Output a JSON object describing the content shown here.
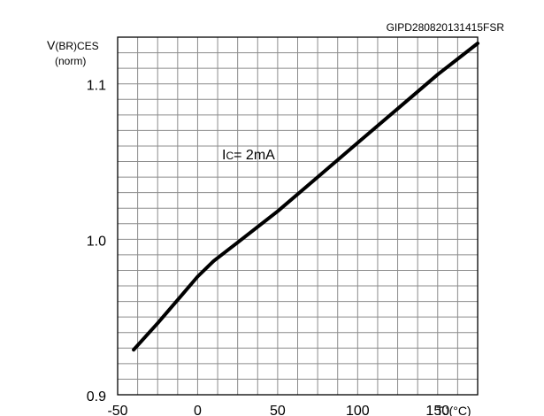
{
  "chart_data": {
    "type": "line",
    "code": "GIPD280820131415FSR",
    "ylabel_main": "V",
    "ylabel_sub": "(BR)CES",
    "ylabel_norm": "(norm)",
    "xlabel_main": "T",
    "xlabel_sub": "J",
    "xlabel_unit": "(°C)",
    "annotation_main": "I",
    "annotation_sub": "C",
    "annotation_rest": "= 2mA",
    "xlim": [
      -50,
      175
    ],
    "ylim": [
      0.9,
      1.13
    ],
    "x_ticks": [
      -50,
      0,
      50,
      100,
      150
    ],
    "x_tick_labels": [
      "-50",
      "0",
      "50",
      "100",
      "150"
    ],
    "y_ticks": [
      0.9,
      1.0,
      1.1
    ],
    "y_tick_labels": [
      "0.9",
      "1.0",
      "1.1"
    ],
    "grid": true,
    "series": [
      {
        "color": "#000000",
        "x": [
          -40,
          -25,
          -10,
          0,
          10,
          25,
          50,
          75,
          100,
          125,
          150,
          175
        ],
        "y": [
          0.929,
          0.946,
          0.964,
          0.976,
          0.986,
          0.998,
          1.018,
          1.04,
          1.062,
          1.084,
          1.106,
          1.126
        ]
      }
    ]
  }
}
